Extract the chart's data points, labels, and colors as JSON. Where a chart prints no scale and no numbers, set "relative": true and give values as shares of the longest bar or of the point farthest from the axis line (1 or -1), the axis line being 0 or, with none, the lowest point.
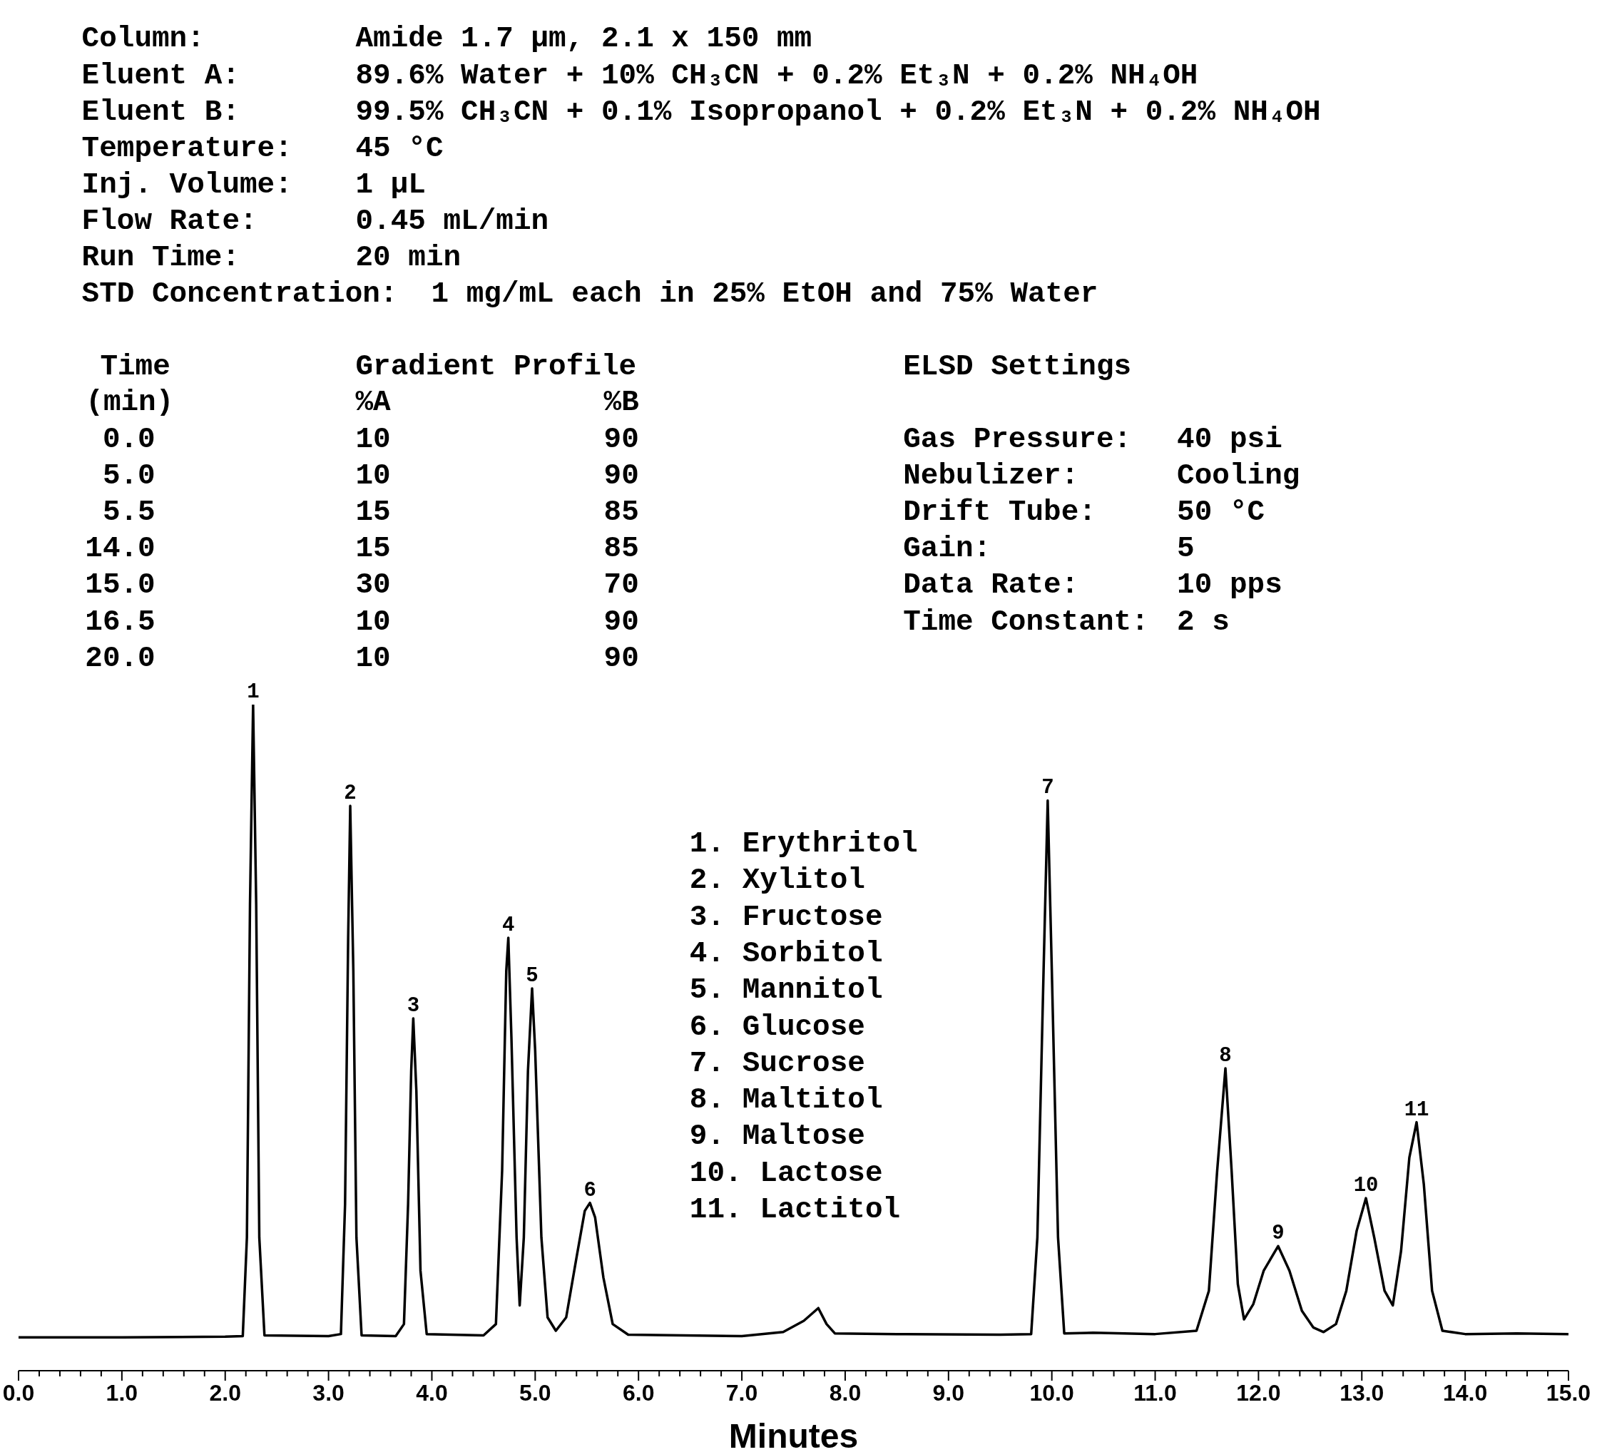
{
  "chart_data": {
    "type": "line",
    "relative": true,
    "xlabel": "Minutes",
    "color": "#000000",
    "xlim": [
      0,
      15
    ],
    "xticks": [
      {
        "value": 0,
        "label": "0.0"
      },
      {
        "value": 0.2,
        "label": null
      },
      {
        "value": 0.4,
        "label": null
      },
      {
        "value": 0.6,
        "label": null
      },
      {
        "value": 0.8,
        "label": null
      },
      {
        "value": 1,
        "label": "1.0"
      },
      {
        "value": 1.2,
        "label": null
      },
      {
        "value": 1.4,
        "label": null
      },
      {
        "value": 1.6,
        "label": null
      },
      {
        "value": 1.8,
        "label": null
      },
      {
        "value": 2,
        "label": "2.0"
      },
      {
        "value": 2.2,
        "label": null
      },
      {
        "value": 2.4,
        "label": null
      },
      {
        "value": 2.6,
        "label": null
      },
      {
        "value": 2.8,
        "label": null
      },
      {
        "value": 3,
        "label": "3.0"
      },
      {
        "value": 3.2,
        "label": null
      },
      {
        "value": 3.4,
        "label": null
      },
      {
        "value": 3.6,
        "label": null
      },
      {
        "value": 3.8,
        "label": null
      },
      {
        "value": 4,
        "label": "4.0"
      },
      {
        "value": 4.2,
        "label": null
      },
      {
        "value": 4.4,
        "label": null
      },
      {
        "value": 4.6,
        "label": null
      },
      {
        "value": 4.8,
        "label": null
      },
      {
        "value": 5,
        "label": "5.0"
      },
      {
        "value": 5.2,
        "label": null
      },
      {
        "value": 5.4,
        "label": null
      },
      {
        "value": 5.6,
        "label": null
      },
      {
        "value": 5.8,
        "label": null
      },
      {
        "value": 6,
        "label": "6.0"
      },
      {
        "value": 6.2,
        "label": null
      },
      {
        "value": 6.4,
        "label": null
      },
      {
        "value": 6.6,
        "label": null
      },
      {
        "value": 6.8,
        "label": null
      },
      {
        "value": 7,
        "label": "7.0"
      },
      {
        "value": 7.2,
        "label": null
      },
      {
        "value": 7.4,
        "label": null
      },
      {
        "value": 7.6,
        "label": null
      },
      {
        "value": 7.8,
        "label": null
      },
      {
        "value": 8,
        "label": "8.0"
      },
      {
        "value": 8.2,
        "label": null
      },
      {
        "value": 8.4,
        "label": null
      },
      {
        "value": 8.6,
        "label": null
      },
      {
        "value": 8.8,
        "label": null
      },
      {
        "value": 9,
        "label": "9.0"
      },
      {
        "value": 9.2,
        "label": null
      },
      {
        "value": 9.4,
        "label": null
      },
      {
        "value": 9.6,
        "label": null
      },
      {
        "value": 9.8,
        "label": null
      },
      {
        "value": 10,
        "label": "10.0"
      },
      {
        "value": 10.2,
        "label": null
      },
      {
        "value": 10.4,
        "label": null
      },
      {
        "value": 10.6,
        "label": null
      },
      {
        "value": 10.8,
        "label": null
      },
      {
        "value": 11,
        "label": "11.0"
      },
      {
        "value": 11.2,
        "label": null
      },
      {
        "value": 11.4,
        "label": null
      },
      {
        "value": 11.6,
        "label": null
      },
      {
        "value": 11.8,
        "label": null
      },
      {
        "value": 12,
        "label": "12.0"
      },
      {
        "value": 12.2,
        "label": null
      },
      {
        "value": 12.4,
        "label": null
      },
      {
        "value": 12.6,
        "label": null
      },
      {
        "value": 12.8,
        "label": null
      },
      {
        "value": 13,
        "label": "13.0"
      },
      {
        "value": 13.2,
        "label": null
      },
      {
        "value": 13.4,
        "label": null
      },
      {
        "value": 13.6,
        "label": null
      },
      {
        "value": 13.8,
        "label": null
      },
      {
        "value": 14,
        "label": "14.0"
      },
      {
        "value": 14.2,
        "label": null
      },
      {
        "value": 14.4,
        "label": null
      },
      {
        "value": 14.6,
        "label": null
      },
      {
        "value": 14.8,
        "label": null
      },
      {
        "value": 15,
        "label": "15.0"
      }
    ],
    "x": [
      0,
      1.0,
      2.0,
      2.17,
      2.21,
      2.24,
      2.27,
      2.3,
      2.33,
      2.38,
      3.0,
      3.12,
      3.16,
      3.19,
      3.21,
      3.24,
      3.27,
      3.32,
      3.65,
      3.73,
      3.77,
      3.8,
      3.82,
      3.85,
      3.89,
      3.95,
      4.5,
      4.62,
      4.68,
      4.72,
      4.74,
      4.77,
      4.82,
      4.85,
      4.89,
      4.93,
      4.97,
      5.0,
      5.06,
      5.12,
      5.2,
      5.3,
      5.4,
      5.48,
      5.53,
      5.58,
      5.66,
      5.75,
      5.9,
      7.0,
      7.4,
      7.6,
      7.74,
      7.82,
      7.9,
      8.5,
      9.5,
      9.8,
      9.86,
      9.92,
      9.96,
      10.0,
      10.06,
      10.12,
      10.4,
      11.0,
      11.4,
      11.52,
      11.6,
      11.68,
      11.74,
      11.8,
      11.86,
      11.95,
      12.05,
      12.19,
      12.3,
      12.42,
      12.53,
      12.63,
      12.75,
      12.85,
      12.95,
      13.04,
      13.12,
      13.22,
      13.3,
      13.38,
      13.46,
      13.53,
      13.6,
      13.68,
      13.78,
      14.0,
      14.5,
      15.0
    ],
    "values": [
      0.05,
      0.05,
      0.051,
      0.052,
      0.2,
      0.7,
      1.0,
      0.7,
      0.2,
      0.053,
      0.052,
      0.055,
      0.25,
      0.65,
      0.848,
      0.6,
      0.2,
      0.053,
      0.052,
      0.07,
      0.25,
      0.45,
      0.529,
      0.42,
      0.15,
      0.055,
      0.053,
      0.07,
      0.3,
      0.6,
      0.65,
      0.5,
      0.2,
      0.098,
      0.2,
      0.45,
      0.574,
      0.48,
      0.2,
      0.08,
      0.06,
      0.08,
      0.17,
      0.24,
      0.252,
      0.23,
      0.14,
      0.07,
      0.054,
      0.052,
      0.058,
      0.075,
      0.094,
      0.07,
      0.056,
      0.055,
      0.054,
      0.055,
      0.2,
      0.6,
      0.856,
      0.6,
      0.2,
      0.056,
      0.057,
      0.055,
      0.06,
      0.12,
      0.3,
      0.454,
      0.3,
      0.13,
      0.077,
      0.1,
      0.15,
      0.187,
      0.15,
      0.09,
      0.065,
      0.058,
      0.07,
      0.12,
      0.21,
      0.259,
      0.2,
      0.12,
      0.098,
      0.18,
      0.32,
      0.373,
      0.28,
      0.12,
      0.06,
      0.055,
      0.056,
      0.055
    ],
    "annotations": [
      "Column:",
      "Amide 1.7 µm, 2.1 x 150 mm",
      "Eluent A:",
      "89.6% Water + 10% CH₃CN + 0.2% Et₃N + 0.2% NH₄OH",
      "Eluent B:",
      "99.5% CH₃CN + 0.1% Isopropanol + 0.2% Et₃N + 0.2% NH₄OH",
      "Temperature:",
      "45 °C",
      "Inj. Volume:",
      "1 µL",
      "Flow Rate:",
      "0.45 mL/min",
      "Run Time:",
      "20 min",
      "STD Concentration:",
      "1 mg/mL each in 25% EtOH and 75% Water",
      "Time",
      "Gradient Profile",
      "(min)",
      "%A",
      "%B",
      "0.0",
      "10",
      "90",
      "5.0",
      "10",
      "90",
      "5.5",
      "15",
      "85",
      "14.0",
      "15",
      "85",
      "15.0",
      "30",
      "70",
      "16.5",
      "10",
      "90",
      "20.0",
      "10",
      "90",
      "ELSD Settings",
      "Gas Pressure:",
      "40 psi",
      "Nebulizer:",
      "Cooling",
      "Drift Tube:",
      "50 °C",
      "Gain:",
      "5",
      "Data Rate:",
      "10 pps",
      "Time Constant:",
      "2 s",
      "1. Erythritol",
      "2. Xylitol",
      "3. Fructose",
      "4. Sorbitol",
      "5. Mannitol",
      "6. Glucose",
      "7. Sucrose",
      "8. Maltitol",
      "9. Maltose",
      "10. Lactose",
      "11. Lactitol",
      {
        "text": "1",
        "x": 2.27,
        "y": 1.0
      },
      {
        "text": "2",
        "x": 3.21,
        "y": 0.848
      },
      {
        "text": "3",
        "x": 3.82,
        "y": 0.529
      },
      {
        "text": "4",
        "x": 4.74,
        "y": 0.65
      },
      {
        "text": "5",
        "x": 4.97,
        "y": 0.574
      },
      {
        "text": "6",
        "x": 5.53,
        "y": 0.252
      },
      {
        "text": "7",
        "x": 9.96,
        "y": 0.856
      },
      {
        "text": "8",
        "x": 11.68,
        "y": 0.454
      },
      {
        "text": "9",
        "x": 12.19,
        "y": 0.187
      },
      {
        "text": "10",
        "x": 13.04,
        "y": 0.259
      },
      {
        "text": "11",
        "x": 13.53,
        "y": 0.373
      }
    ]
  }
}
